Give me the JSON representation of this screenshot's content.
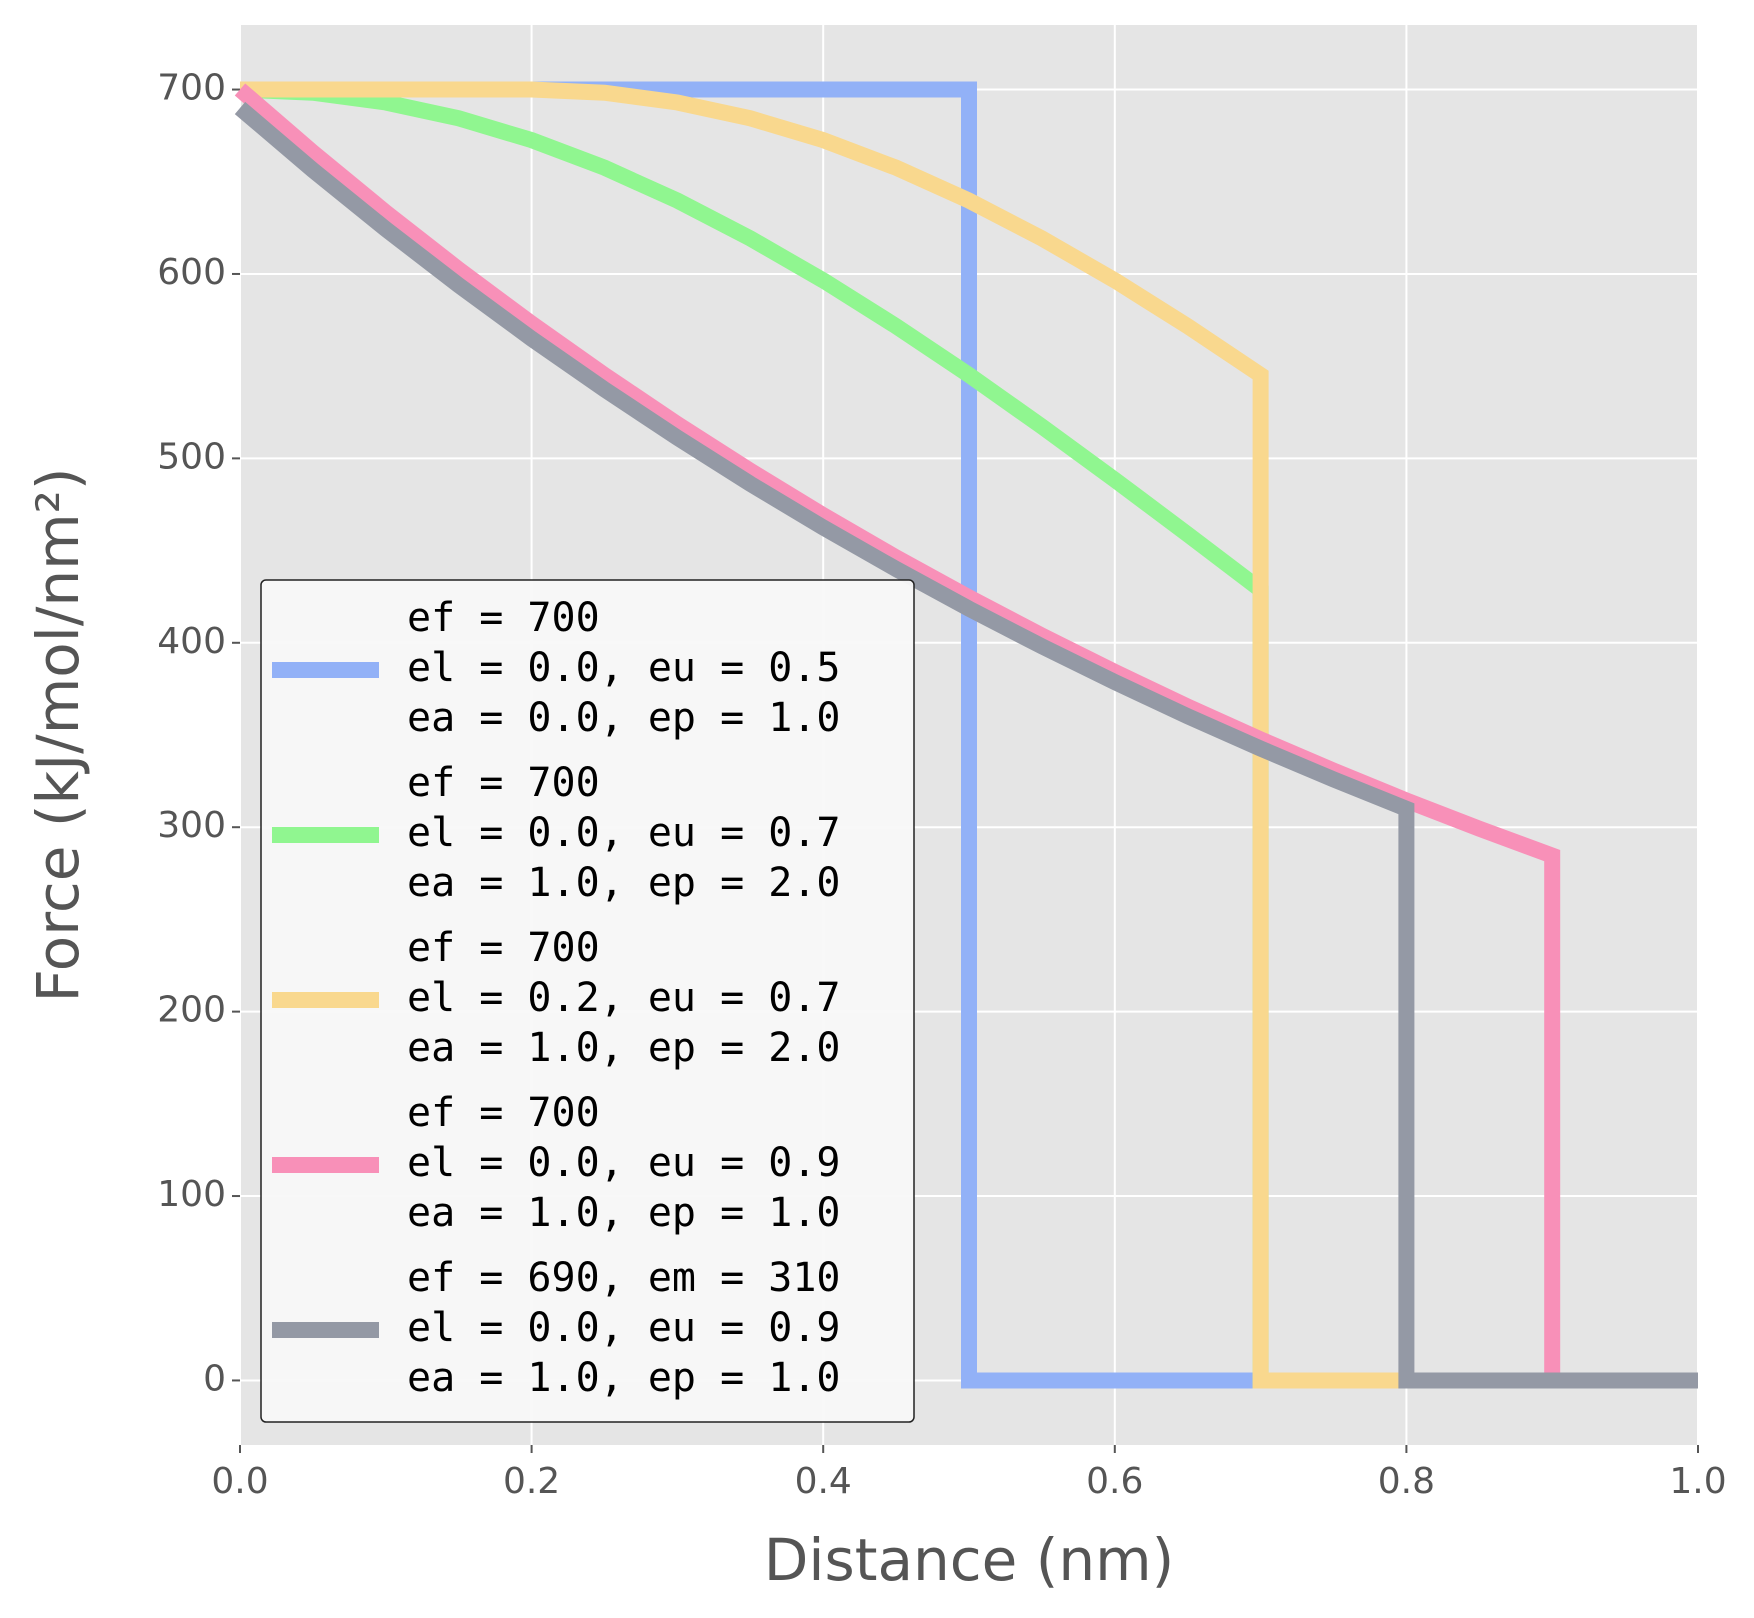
{
  "chart_data": {
    "type": "line",
    "xlabel": "Distance (nm)",
    "ylabel": "Force (kJ/mol/nm²)",
    "xlim": [
      0,
      1
    ],
    "ylim": [
      -35,
      735
    ],
    "xticks": [
      {
        "value": 0,
        "label": "0.0"
      },
      0.2,
      0.4,
      0.6,
      0.8,
      {
        "value": 1,
        "label": "1.0"
      }
    ],
    "yticks": [
      0,
      100,
      200,
      300,
      400,
      500,
      600,
      700
    ],
    "grid": true,
    "legend": "lower left",
    "series": [
      {
        "name": "ef = 700\nel = 0.0, eu = 0.5\nea = 0.0, ep = 1.0",
        "color": "#92b1f7",
        "x": [
          0,
          0.5,
          0.5,
          1.0
        ],
        "values": [
          700,
          700,
          0,
          0
        ]
      },
      {
        "name": "ef = 700\nel = 0.0, eu = 0.7\nea = 1.0, ep = 2.0",
        "color": "#90f690",
        "x": [
          0,
          0.05,
          0.1,
          0.15,
          0.2,
          0.25,
          0.3,
          0.35,
          0.4,
          0.45,
          0.5,
          0.55,
          0.6,
          0.65,
          0.7,
          0.7,
          1.0
        ],
        "values": [
          700,
          698.3,
          693.0,
          684.4,
          672.6,
          657.6,
          639.8,
          619.3,
          596.5,
          571.7,
          545.2,
          517.3,
          488.4,
          458.8,
          428.8,
          0,
          0
        ]
      },
      {
        "name": "ef = 700\nel = 0.2, eu = 0.7\nea = 1.0, ep = 2.0",
        "color": "#f9d88e",
        "x": [
          0,
          0.2,
          0.25,
          0.3,
          0.35,
          0.4,
          0.45,
          0.5,
          0.55,
          0.6,
          0.65,
          0.7,
          0.7,
          1.0
        ],
        "values": [
          700,
          700,
          698.3,
          693.0,
          684.4,
          672.6,
          657.6,
          639.8,
          619.3,
          596.5,
          571.7,
          545.2,
          0,
          0
        ]
      },
      {
        "name": "ef = 700\nel = 0.0, eu = 0.9\nea = 1.0, ep = 1.0",
        "color": "#f890b8",
        "x": [
          0,
          0.05,
          0.1,
          0.15,
          0.2,
          0.25,
          0.3,
          0.35,
          0.4,
          0.45,
          0.5,
          0.55,
          0.6,
          0.65,
          0.7,
          0.75,
          0.8,
          0.85,
          0.9,
          0.9,
          1.0
        ],
        "values": [
          700,
          665.9,
          633.4,
          602.5,
          573.1,
          545.2,
          518.6,
          493.3,
          469.2,
          446.3,
          424.6,
          403.9,
          384.2,
          365.4,
          347.6,
          330.7,
          314.5,
          299.2,
          284.6,
          0,
          0
        ]
      },
      {
        "name": "ef = 690, em = 310\nel = 0.0, eu = 0.9\nea = 1.0, ep = 1.0",
        "color": "#9499a5",
        "x": [
          0,
          0.05,
          0.1,
          0.15,
          0.2,
          0.25,
          0.3,
          0.35,
          0.4,
          0.45,
          0.5,
          0.55,
          0.6,
          0.65,
          0.7,
          0.75,
          0.8,
          0.8,
          1.0
        ],
        "values": [
          690,
          656.3,
          624.3,
          593.9,
          564.9,
          537.4,
          511.2,
          486.2,
          462.5,
          440.0,
          418.5,
          398.1,
          378.7,
          360.2,
          342.6,
          325.9,
          310.0,
          0,
          0
        ]
      }
    ]
  }
}
